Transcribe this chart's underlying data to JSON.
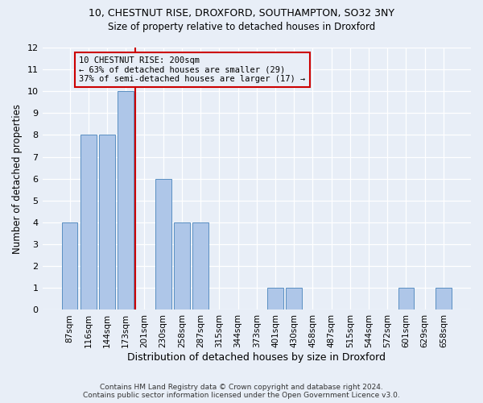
{
  "title1": "10, CHESTNUT RISE, DROXFORD, SOUTHAMPTON, SO32 3NY",
  "title2": "Size of property relative to detached houses in Droxford",
  "xlabel": "Distribution of detached houses by size in Droxford",
  "ylabel": "Number of detached properties",
  "footnote": "Contains HM Land Registry data © Crown copyright and database right 2024.\nContains public sector information licensed under the Open Government Licence v3.0.",
  "annotation_title": "10 CHESTNUT RISE: 200sqm",
  "annotation_line1": "← 63% of detached houses are smaller (29)",
  "annotation_line2": "37% of semi-detached houses are larger (17) →",
  "bar_labels": [
    "87sqm",
    "116sqm",
    "144sqm",
    "173sqm",
    "201sqm",
    "230sqm",
    "258sqm",
    "287sqm",
    "315sqm",
    "344sqm",
    "373sqm",
    "401sqm",
    "430sqm",
    "458sqm",
    "487sqm",
    "515sqm",
    "544sqm",
    "572sqm",
    "601sqm",
    "629sqm",
    "658sqm"
  ],
  "bar_values": [
    4,
    8,
    8,
    10,
    0,
    6,
    4,
    4,
    0,
    0,
    0,
    1,
    1,
    0,
    0,
    0,
    0,
    0,
    1,
    0,
    1
  ],
  "bar_color": "#aec6e8",
  "bar_edge_color": "#5a8fc2",
  "subject_line_color": "#cc0000",
  "annotation_box_color": "#cc0000",
  "background_color": "#e8eef7",
  "ylim": [
    0,
    12
  ],
  "yticks": [
    0,
    1,
    2,
    3,
    4,
    5,
    6,
    7,
    8,
    9,
    10,
    11,
    12
  ]
}
